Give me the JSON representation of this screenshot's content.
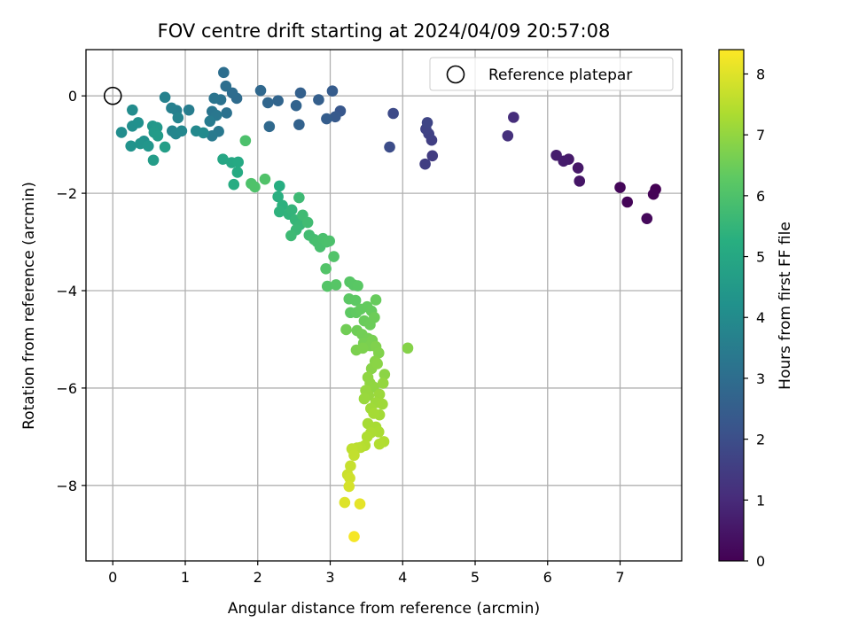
{
  "chart_data": {
    "type": "scatter",
    "title": "FOV centre drift starting at 2024/04/09 20:57:08",
    "xlabel": "Angular distance from reference (arcmin)",
    "ylabel": "Rotation from reference (arcmin)",
    "xlim": [
      -0.37,
      7.85
    ],
    "ylim": [
      -9.55,
      0.95
    ],
    "xticks": [
      0,
      1,
      2,
      3,
      4,
      5,
      6,
      7
    ],
    "yticks": [
      0,
      -2,
      -4,
      -6,
      -8
    ],
    "grid": true,
    "legend": {
      "location": "top-right",
      "entries": [
        "Reference platepar"
      ]
    },
    "reference_point": {
      "x": 0,
      "y": 0
    },
    "colorbar": {
      "label": "Hours from first FF file",
      "colormap": "viridis",
      "range": [
        0,
        8.4
      ],
      "ticks": [
        0,
        1,
        2,
        3,
        4,
        5,
        6,
        7,
        8
      ]
    },
    "series": [
      {
        "points": [
          {
            "x": 7.49,
            "y": -1.92,
            "h": 0.0
          },
          {
            "x": 7.46,
            "y": -2.02,
            "h": 0.05
          },
          {
            "x": 7.1,
            "y": -2.18,
            "h": 0.1
          },
          {
            "x": 7.0,
            "y": -1.88,
            "h": 0.15
          },
          {
            "x": 7.37,
            "y": -2.52,
            "h": 0.2
          },
          {
            "x": 6.44,
            "y": -1.75,
            "h": 0.5
          },
          {
            "x": 6.42,
            "y": -1.48,
            "h": 0.55
          },
          {
            "x": 6.29,
            "y": -1.3,
            "h": 0.6
          },
          {
            "x": 6.22,
            "y": -1.34,
            "h": 0.65
          },
          {
            "x": 6.12,
            "y": -1.22,
            "h": 0.7
          },
          {
            "x": 5.53,
            "y": -0.44,
            "h": 1.1
          },
          {
            "x": 5.45,
            "y": -0.82,
            "h": 1.2
          },
          {
            "x": 4.41,
            "y": -1.23,
            "h": 1.5
          },
          {
            "x": 4.31,
            "y": -1.4,
            "h": 1.55
          },
          {
            "x": 4.4,
            "y": -0.91,
            "h": 1.6
          },
          {
            "x": 4.36,
            "y": -0.78,
            "h": 1.65
          },
          {
            "x": 4.32,
            "y": -0.68,
            "h": 1.7
          },
          {
            "x": 4.34,
            "y": -0.55,
            "h": 1.75
          },
          {
            "x": 3.87,
            "y": -0.36,
            "h": 1.9
          },
          {
            "x": 3.82,
            "y": -1.05,
            "h": 2.0
          },
          {
            "x": 3.14,
            "y": -0.31,
            "h": 2.3
          },
          {
            "x": 3.07,
            "y": -0.43,
            "h": 2.4
          },
          {
            "x": 3.03,
            "y": 0.1,
            "h": 2.45
          },
          {
            "x": 2.95,
            "y": -0.47,
            "h": 2.5
          },
          {
            "x": 2.84,
            "y": -0.08,
            "h": 2.55
          },
          {
            "x": 2.59,
            "y": 0.06,
            "h": 2.6
          },
          {
            "x": 2.57,
            "y": -0.59,
            "h": 2.65
          },
          {
            "x": 2.53,
            "y": -0.2,
            "h": 2.7
          },
          {
            "x": 2.28,
            "y": -0.1,
            "h": 2.75
          },
          {
            "x": 2.14,
            "y": -0.14,
            "h": 2.8
          },
          {
            "x": 2.04,
            "y": 0.11,
            "h": 2.85
          },
          {
            "x": 2.16,
            "y": -0.63,
            "h": 2.9
          },
          {
            "x": 1.71,
            "y": -0.05,
            "h": 2.95
          },
          {
            "x": 1.65,
            "y": 0.06,
            "h": 3.0
          },
          {
            "x": 1.53,
            "y": 0.48,
            "h": 3.05
          },
          {
            "x": 1.56,
            "y": 0.2,
            "h": 3.1
          },
          {
            "x": 1.57,
            "y": -0.35,
            "h": 3.15
          },
          {
            "x": 1.49,
            "y": -0.08,
            "h": 3.2
          },
          {
            "x": 1.4,
            "y": -0.05,
            "h": 3.25
          },
          {
            "x": 1.37,
            "y": -0.32,
            "h": 3.3
          },
          {
            "x": 1.43,
            "y": -0.4,
            "h": 3.35
          },
          {
            "x": 1.46,
            "y": -0.73,
            "h": 3.4
          },
          {
            "x": 1.37,
            "y": -0.82,
            "h": 3.45
          },
          {
            "x": 1.34,
            "y": -0.52,
            "h": 3.5
          },
          {
            "x": 1.05,
            "y": -0.29,
            "h": 3.55
          },
          {
            "x": 0.88,
            "y": -0.3,
            "h": 3.6
          },
          {
            "x": 0.81,
            "y": -0.25,
            "h": 3.65
          },
          {
            "x": 0.72,
            "y": -0.03,
            "h": 3.7
          },
          {
            "x": 0.9,
            "y": -0.45,
            "h": 3.75
          },
          {
            "x": 0.82,
            "y": -0.72,
            "h": 3.8
          },
          {
            "x": 0.87,
            "y": -0.78,
            "h": 3.85
          },
          {
            "x": 0.95,
            "y": -0.72,
            "h": 3.9
          },
          {
            "x": 1.15,
            "y": -0.72,
            "h": 3.95
          },
          {
            "x": 1.25,
            "y": -0.76,
            "h": 4.0
          },
          {
            "x": 0.27,
            "y": -0.29,
            "h": 4.05
          },
          {
            "x": 0.12,
            "y": -0.75,
            "h": 4.1
          },
          {
            "x": 0.27,
            "y": -0.62,
            "h": 4.15
          },
          {
            "x": 0.35,
            "y": -0.55,
            "h": 4.2
          },
          {
            "x": 0.43,
            "y": -0.93,
            "h": 4.25
          },
          {
            "x": 0.25,
            "y": -1.03,
            "h": 4.3
          },
          {
            "x": 0.38,
            "y": -0.98,
            "h": 4.35
          },
          {
            "x": 0.49,
            "y": -1.03,
            "h": 4.4
          },
          {
            "x": 0.55,
            "y": -0.62,
            "h": 4.45
          },
          {
            "x": 0.61,
            "y": -0.65,
            "h": 4.5
          },
          {
            "x": 0.57,
            "y": -0.75,
            "h": 4.55
          },
          {
            "x": 0.62,
            "y": -0.82,
            "h": 4.6
          },
          {
            "x": 0.56,
            "y": -1.32,
            "h": 4.65
          },
          {
            "x": 0.72,
            "y": -1.05,
            "h": 4.7
          },
          {
            "x": 1.52,
            "y": -1.3,
            "h": 5.0
          },
          {
            "x": 1.64,
            "y": -1.37,
            "h": 5.05
          },
          {
            "x": 1.73,
            "y": -1.36,
            "h": 5.1
          },
          {
            "x": 1.72,
            "y": -1.57,
            "h": 5.15
          },
          {
            "x": 1.67,
            "y": -1.82,
            "h": 5.2
          },
          {
            "x": 2.3,
            "y": -1.85,
            "h": 5.25
          },
          {
            "x": 2.28,
            "y": -2.07,
            "h": 5.3
          },
          {
            "x": 2.34,
            "y": -2.25,
            "h": 5.35
          },
          {
            "x": 2.3,
            "y": -2.38,
            "h": 5.4
          },
          {
            "x": 2.43,
            "y": -2.43,
            "h": 5.45
          },
          {
            "x": 2.47,
            "y": -2.34,
            "h": 5.5
          },
          {
            "x": 2.52,
            "y": -2.55,
            "h": 5.55
          },
          {
            "x": 2.58,
            "y": -2.65,
            "h": 5.6
          },
          {
            "x": 2.53,
            "y": -2.75,
            "h": 5.65
          },
          {
            "x": 2.46,
            "y": -2.87,
            "h": 5.7
          },
          {
            "x": 2.57,
            "y": -2.09,
            "h": 5.72
          },
          {
            "x": 2.62,
            "y": -2.45,
            "h": 5.75
          },
          {
            "x": 2.69,
            "y": -2.6,
            "h": 5.78
          },
          {
            "x": 2.71,
            "y": -2.86,
            "h": 5.8
          },
          {
            "x": 2.78,
            "y": -2.95,
            "h": 5.85
          },
          {
            "x": 2.82,
            "y": -3.0,
            "h": 5.9
          },
          {
            "x": 2.86,
            "y": -3.1,
            "h": 5.92
          },
          {
            "x": 2.9,
            "y": -2.93,
            "h": 5.95
          },
          {
            "x": 2.95,
            "y": -3.0,
            "h": 5.97
          },
          {
            "x": 2.99,
            "y": -2.98,
            "h": 6.0
          },
          {
            "x": 1.83,
            "y": -0.92,
            "h": 6.0
          },
          {
            "x": 1.91,
            "y": -1.8,
            "h": 6.02
          },
          {
            "x": 1.96,
            "y": -1.87,
            "h": 6.05
          },
          {
            "x": 2.1,
            "y": -1.71,
            "h": 6.08
          },
          {
            "x": 3.05,
            "y": -3.3,
            "h": 6.1
          },
          {
            "x": 2.94,
            "y": -3.55,
            "h": 6.12
          },
          {
            "x": 2.96,
            "y": -3.91,
            "h": 6.15
          },
          {
            "x": 3.08,
            "y": -3.88,
            "h": 6.18
          },
          {
            "x": 3.27,
            "y": -3.82,
            "h": 6.2
          },
          {
            "x": 3.32,
            "y": -3.88,
            "h": 6.22
          },
          {
            "x": 3.38,
            "y": -3.9,
            "h": 6.25
          },
          {
            "x": 3.26,
            "y": -4.17,
            "h": 6.28
          },
          {
            "x": 3.35,
            "y": -4.2,
            "h": 6.3
          },
          {
            "x": 3.28,
            "y": -4.45,
            "h": 6.32
          },
          {
            "x": 3.36,
            "y": -4.45,
            "h": 6.35
          },
          {
            "x": 3.42,
            "y": -4.38,
            "h": 6.38
          },
          {
            "x": 3.51,
            "y": -4.33,
            "h": 6.4
          },
          {
            "x": 3.57,
            "y": -4.42,
            "h": 6.42
          },
          {
            "x": 3.63,
            "y": -4.19,
            "h": 6.45
          },
          {
            "x": 3.47,
            "y": -4.62,
            "h": 6.48
          },
          {
            "x": 3.55,
            "y": -4.7,
            "h": 6.5
          },
          {
            "x": 3.61,
            "y": -4.55,
            "h": 6.52
          },
          {
            "x": 3.37,
            "y": -4.82,
            "h": 6.55
          },
          {
            "x": 3.22,
            "y": -4.8,
            "h": 6.58
          },
          {
            "x": 3.44,
            "y": -4.9,
            "h": 6.6
          },
          {
            "x": 3.52,
            "y": -4.98,
            "h": 6.62
          },
          {
            "x": 3.46,
            "y": -5.08,
            "h": 6.65
          },
          {
            "x": 3.58,
            "y": -5.02,
            "h": 6.68
          },
          {
            "x": 3.55,
            "y": -5.13,
            "h": 6.7
          },
          {
            "x": 3.36,
            "y": -5.22,
            "h": 6.72
          },
          {
            "x": 3.45,
            "y": -5.18,
            "h": 6.75
          },
          {
            "x": 3.63,
            "y": -5.15,
            "h": 6.78
          },
          {
            "x": 3.67,
            "y": -5.28,
            "h": 6.8
          },
          {
            "x": 4.07,
            "y": -5.18,
            "h": 6.85
          },
          {
            "x": 3.62,
            "y": -5.45,
            "h": 6.88
          },
          {
            "x": 3.57,
            "y": -5.6,
            "h": 6.9
          },
          {
            "x": 3.65,
            "y": -5.5,
            "h": 6.92
          },
          {
            "x": 3.75,
            "y": -5.72,
            "h": 6.95
          },
          {
            "x": 3.52,
            "y": -5.78,
            "h": 6.98
          },
          {
            "x": 3.55,
            "y": -5.9,
            "h": 7.0
          },
          {
            "x": 3.6,
            "y": -5.98,
            "h": 7.02
          },
          {
            "x": 3.73,
            "y": -5.9,
            "h": 7.05
          },
          {
            "x": 3.49,
            "y": -6.05,
            "h": 7.08
          },
          {
            "x": 3.53,
            "y": -6.15,
            "h": 7.1
          },
          {
            "x": 3.47,
            "y": -6.22,
            "h": 7.12
          },
          {
            "x": 3.68,
            "y": -6.13,
            "h": 7.15
          },
          {
            "x": 3.63,
            "y": -6.3,
            "h": 7.18
          },
          {
            "x": 3.72,
            "y": -6.33,
            "h": 7.2
          },
          {
            "x": 3.56,
            "y": -6.42,
            "h": 7.22
          },
          {
            "x": 3.68,
            "y": -6.55,
            "h": 7.25
          },
          {
            "x": 3.6,
            "y": -6.52,
            "h": 7.28
          },
          {
            "x": 3.52,
            "y": -6.73,
            "h": 7.3
          },
          {
            "x": 3.63,
            "y": -6.8,
            "h": 7.32
          },
          {
            "x": 3.67,
            "y": -6.9,
            "h": 7.35
          },
          {
            "x": 3.56,
            "y": -6.92,
            "h": 7.38
          },
          {
            "x": 3.51,
            "y": -7.0,
            "h": 7.4
          },
          {
            "x": 3.74,
            "y": -7.1,
            "h": 7.42
          },
          {
            "x": 3.68,
            "y": -7.15,
            "h": 7.45
          },
          {
            "x": 3.48,
            "y": -7.18,
            "h": 7.48
          },
          {
            "x": 3.42,
            "y": -7.22,
            "h": 7.5
          },
          {
            "x": 3.37,
            "y": -7.23,
            "h": 7.55
          },
          {
            "x": 3.3,
            "y": -7.25,
            "h": 7.6
          },
          {
            "x": 3.33,
            "y": -7.38,
            "h": 7.65
          },
          {
            "x": 3.28,
            "y": -7.6,
            "h": 7.7
          },
          {
            "x": 3.24,
            "y": -7.78,
            "h": 7.75
          },
          {
            "x": 3.27,
            "y": -7.85,
            "h": 7.8
          },
          {
            "x": 3.26,
            "y": -8.02,
            "h": 7.9
          },
          {
            "x": 3.2,
            "y": -8.35,
            "h": 8.0
          },
          {
            "x": 3.41,
            "y": -8.38,
            "h": 8.1
          },
          {
            "x": 3.33,
            "y": -9.05,
            "h": 8.3
          }
        ]
      }
    ]
  }
}
